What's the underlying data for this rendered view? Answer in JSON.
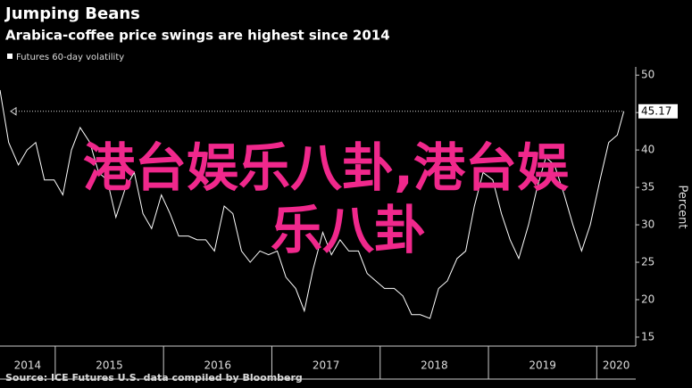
{
  "chart_data": {
    "type": "line",
    "title": "Jumping Beans",
    "subtitle": "Arabica-coffee price swings are highest since 2014",
    "y_label": "Percent",
    "source": "Source: ICE Futures U.S. data compiled by Bloomberg",
    "watermark": [
      "港台娱乐八卦,港台娱",
      "乐八卦"
    ],
    "watermark_color": "#f0288c",
    "grid": false,
    "xlim": [
      2014.49,
      2020.36
    ],
    "xticks": [
      2014,
      2015,
      2016,
      2017,
      2018,
      2019,
      2020
    ],
    "ylim": [
      13.8,
      51.1
    ],
    "yticks": [
      15,
      20,
      25,
      30,
      35,
      40,
      45,
      50
    ],
    "x": [
      2014.49,
      2014.57,
      2014.66,
      2014.74,
      2014.82,
      2014.9,
      2014.99,
      2015.07,
      2015.15,
      2015.23,
      2015.32,
      2015.4,
      2015.48,
      2015.56,
      2015.65,
      2015.73,
      2015.81,
      2015.89,
      2015.98,
      2016.06,
      2016.14,
      2016.23,
      2016.31,
      2016.39,
      2016.47,
      2016.56,
      2016.64,
      2016.72,
      2016.8,
      2016.89,
      2016.97,
      2017.05,
      2017.13,
      2017.22,
      2017.3,
      2017.38,
      2017.47,
      2017.55,
      2017.63,
      2017.71,
      2017.8,
      2017.88,
      2017.96,
      2018.04,
      2018.13,
      2018.21,
      2018.29,
      2018.37,
      2018.46,
      2018.54,
      2018.62,
      2018.71,
      2018.79,
      2018.87,
      2018.95,
      2019.04,
      2019.12,
      2019.2,
      2019.28,
      2019.37,
      2019.45,
      2019.53,
      2019.61,
      2019.7,
      2019.78,
      2019.86,
      2019.94,
      2020.03,
      2020.11,
      2020.19,
      2020.25
    ],
    "series": [
      {
        "name": "Futures 60-day volatility",
        "color": "#ffffff",
        "values": [
          48,
          41,
          38,
          40,
          41,
          36,
          36,
          34,
          40,
          43,
          41,
          37,
          36,
          31,
          35,
          37,
          31.5,
          29.5,
          34,
          31.5,
          28.5,
          28.5,
          28,
          28,
          26.5,
          32.5,
          31.5,
          26.5,
          25,
          26.5,
          26,
          26.5,
          23,
          21.5,
          18.5,
          24,
          29,
          26,
          28,
          26.5,
          26.5,
          23.5,
          22.5,
          21.5,
          21.5,
          20.5,
          18,
          18,
          17.5,
          21.5,
          22.5,
          25.5,
          26.5,
          32.5,
          37,
          36,
          31.5,
          28,
          25.5,
          30,
          35,
          39,
          38,
          34,
          30,
          26.5,
          30,
          36,
          41,
          42,
          45.17
        ]
      }
    ]
  }
}
